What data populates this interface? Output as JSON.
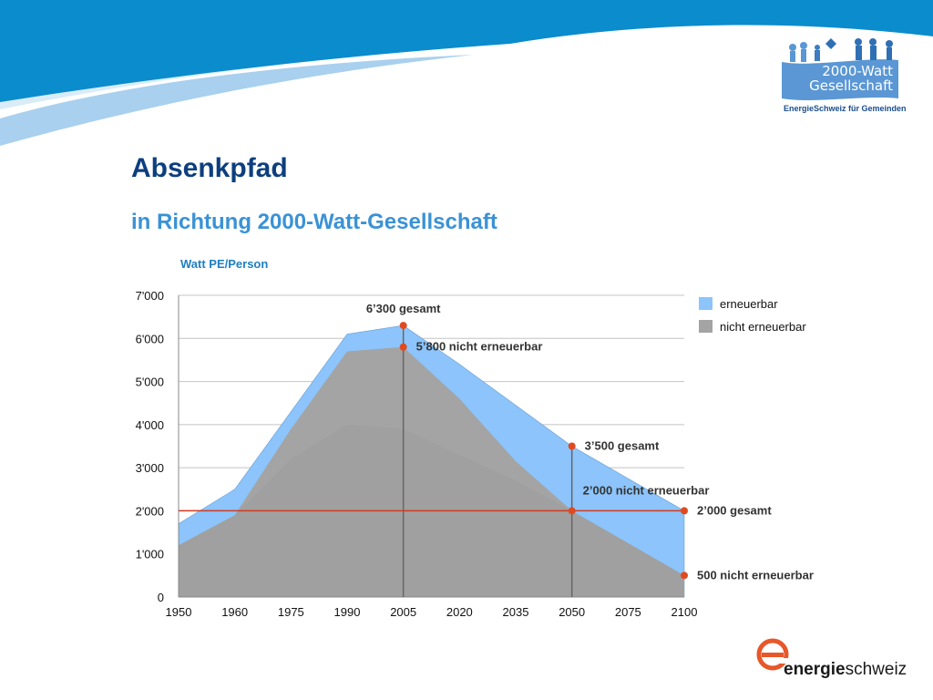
{
  "header": {
    "logo_line1": "2000-Watt",
    "logo_line2": "Gesellschaft",
    "logo_caption": "EnergieSchweiz für Gemeinden"
  },
  "title": "Absenkpfad",
  "subtitle": "in Richtung 2000-Watt-Gesellschaft",
  "footer_logo": {
    "word_bold": "energie",
    "word_regular": "schweiz"
  },
  "colors": {
    "renewable": "#8cc4fb",
    "non_renewable": "#a4a4a4",
    "target_line": "#d03a20",
    "marker": "#e04a20"
  },
  "chart_data": {
    "type": "area",
    "unit_label": "Watt PE/Person",
    "categories": [
      "1950",
      "1960",
      "1975",
      "1990",
      "2005",
      "2020",
      "2035",
      "2050",
      "2075",
      "2100"
    ],
    "series": [
      {
        "name": "erneuerbar",
        "role": "total",
        "values": [
          1700,
          2500,
          4300,
          6100,
          6300,
          5400,
          4450,
          3500,
          2750,
          2000
        ]
      },
      {
        "name": "nicht erneuerbar",
        "values": [
          1200,
          1900,
          3900,
          5700,
          5800,
          4600,
          3150,
          2000,
          1250,
          500
        ]
      }
    ],
    "ylim": [
      0,
      7000
    ],
    "yticks": [
      {
        "value": 0,
        "label": "0"
      },
      {
        "value": 1000,
        "label": "1'000"
      },
      {
        "value": 2000,
        "label": "2'000"
      },
      {
        "value": 3000,
        "label": "3'000"
      },
      {
        "value": 4000,
        "label": "4'000"
      },
      {
        "value": 5000,
        "label": "5'000"
      },
      {
        "value": 6000,
        "label": "6'000"
      },
      {
        "value": 7000,
        "label": "7'000"
      }
    ],
    "grid": true,
    "legend": {
      "position": "right",
      "items": [
        {
          "label": "erneuerbar",
          "color": "#8cc4fb"
        },
        {
          "label": "nicht erneuerbar",
          "color": "#a4a4a4"
        }
      ]
    },
    "target_line": {
      "value": 2000
    },
    "vlines": [
      {
        "category": "2005"
      },
      {
        "category": "2050"
      }
    ],
    "annotations": [
      {
        "category": "2005",
        "value": 6300,
        "text": "6’300 gesamt",
        "placement": "above"
      },
      {
        "category": "2005",
        "value": 5800,
        "text": "5’800 nicht erneuerbar",
        "placement": "right"
      },
      {
        "category": "2050",
        "value": 3500,
        "text": "3’500 gesamt",
        "placement": "right"
      },
      {
        "category": "2050",
        "value": 2000,
        "text": "2’000 nicht erneuerbar",
        "placement": "above-right"
      },
      {
        "category": "2100",
        "value": 2000,
        "text": "2’000 gesamt",
        "placement": "right"
      },
      {
        "category": "2100",
        "value": 500,
        "text": "500 nicht erneuerbar",
        "placement": "right"
      }
    ]
  }
}
